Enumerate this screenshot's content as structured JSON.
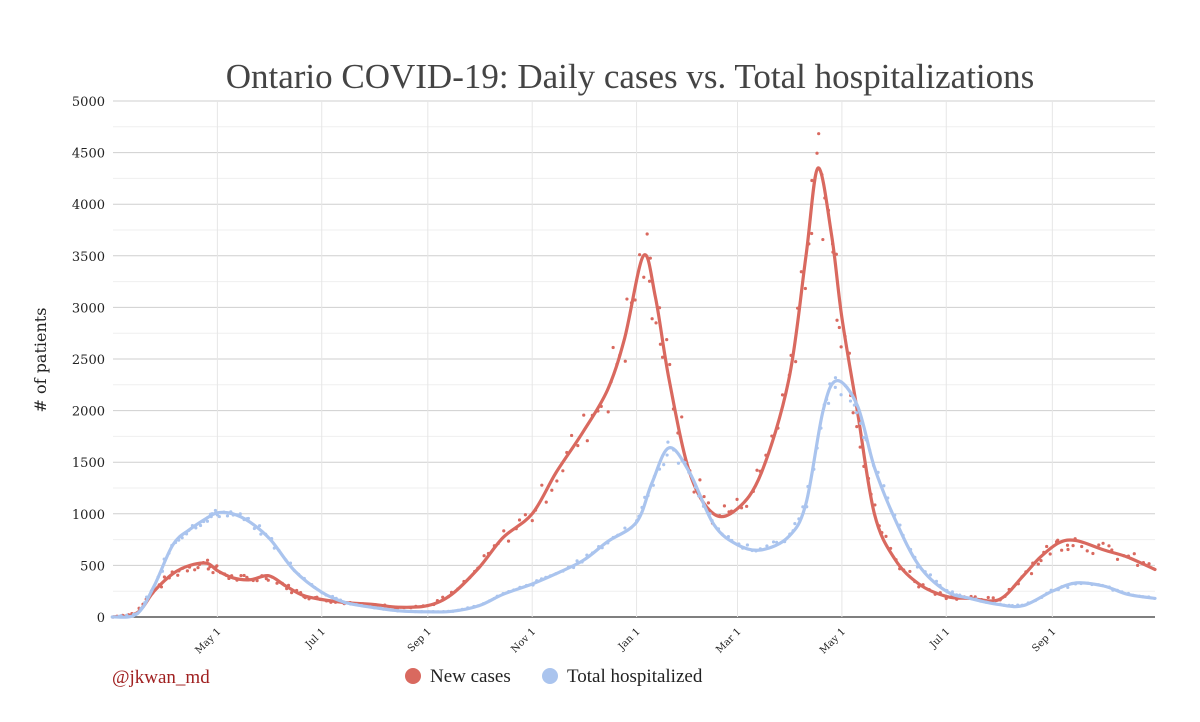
{
  "chart_data": {
    "type": "line",
    "title": "Ontario COVID-19: Daily cases vs. Total hospitalizations",
    "ylabel": "# of patients",
    "ylim": [
      0,
      5000
    ],
    "yticks": [
      0,
      500,
      1000,
      1500,
      2000,
      2500,
      3000,
      3500,
      4000,
      4500,
      5000
    ],
    "xlim": [
      "2020-03-01",
      "2021-10-31"
    ],
    "xticks": [
      {
        "label": "May 1",
        "date": "2020-05-01"
      },
      {
        "label": "Jul 1",
        "date": "2020-07-01"
      },
      {
        "label": "Sep 1",
        "date": "2020-09-01"
      },
      {
        "label": "Nov 1",
        "date": "2020-11-01"
      },
      {
        "label": "Jan 1",
        "date": "2021-01-01"
      },
      {
        "label": "Mar 1",
        "date": "2021-03-01"
      },
      {
        "label": "May 1",
        "date": "2021-05-01"
      },
      {
        "label": "Jul 1",
        "date": "2021-07-01"
      },
      {
        "label": "Sep 1",
        "date": "2021-09-01"
      }
    ],
    "grid": true,
    "legend_position": "bottom",
    "annotation": "@jkwan_md",
    "series": [
      {
        "name": "New cases",
        "color": "#d9695f",
        "x": [
          "2020-03-01",
          "2020-03-15",
          "2020-03-25",
          "2020-04-05",
          "2020-04-15",
          "2020-04-25",
          "2020-05-01",
          "2020-05-10",
          "2020-05-20",
          "2020-05-31",
          "2020-06-10",
          "2020-06-20",
          "2020-07-01",
          "2020-07-15",
          "2020-08-01",
          "2020-08-15",
          "2020-09-01",
          "2020-09-15",
          "2020-10-01",
          "2020-10-15",
          "2020-11-01",
          "2020-11-15",
          "2020-12-01",
          "2020-12-15",
          "2020-12-25",
          "2021-01-05",
          "2021-01-12",
          "2021-01-20",
          "2021-02-01",
          "2021-02-15",
          "2021-03-01",
          "2021-03-15",
          "2021-03-31",
          "2021-04-10",
          "2021-04-17",
          "2021-04-25",
          "2021-05-01",
          "2021-05-10",
          "2021-05-20",
          "2021-06-01",
          "2021-06-15",
          "2021-07-01",
          "2021-07-15",
          "2021-08-01",
          "2021-08-15",
          "2021-08-25",
          "2021-09-05",
          "2021-09-15",
          "2021-10-01",
          "2021-10-15",
          "2021-10-31"
        ],
        "values": [
          0,
          40,
          250,
          420,
          500,
          520,
          450,
          380,
          360,
          400,
          300,
          210,
          170,
          140,
          120,
          95,
          110,
          220,
          480,
          770,
          1000,
          1400,
          1800,
          2200,
          2700,
          3500,
          3100,
          2300,
          1400,
          1000,
          1050,
          1400,
          2300,
          3500,
          4350,
          3700,
          2900,
          2000,
          1000,
          560,
          320,
          200,
          180,
          170,
          400,
          580,
          720,
          740,
          650,
          580,
          460
        ]
      },
      {
        "name": "Total hospitalized",
        "color": "#aac4ee",
        "x": [
          "2020-03-01",
          "2020-03-15",
          "2020-03-25",
          "2020-04-05",
          "2020-04-15",
          "2020-04-25",
          "2020-05-01",
          "2020-05-10",
          "2020-05-20",
          "2020-06-01",
          "2020-06-15",
          "2020-07-01",
          "2020-07-15",
          "2020-08-01",
          "2020-08-15",
          "2020-09-01",
          "2020-09-15",
          "2020-10-01",
          "2020-10-15",
          "2020-11-01",
          "2020-11-15",
          "2020-12-01",
          "2020-12-15",
          "2021-01-01",
          "2021-01-10",
          "2021-01-20",
          "2021-02-01",
          "2021-02-15",
          "2021-03-01",
          "2021-03-15",
          "2021-03-31",
          "2021-04-10",
          "2021-04-20",
          "2021-04-28",
          "2021-05-10",
          "2021-05-20",
          "2021-06-01",
          "2021-06-15",
          "2021-07-01",
          "2021-07-15",
          "2021-08-01",
          "2021-08-15",
          "2021-09-01",
          "2021-09-15",
          "2021-10-01",
          "2021-10-15",
          "2021-10-31"
        ],
        "values": [
          0,
          30,
          300,
          700,
          850,
          960,
          1010,
          1000,
          920,
          750,
          450,
          240,
          140,
          90,
          60,
          50,
          55,
          110,
          220,
          320,
          420,
          550,
          730,
          920,
          1300,
          1640,
          1400,
          900,
          700,
          650,
          780,
          1100,
          2000,
          2290,
          2050,
          1450,
          950,
          500,
          250,
          180,
          120,
          110,
          250,
          330,
          300,
          220,
          180
        ]
      }
    ]
  }
}
